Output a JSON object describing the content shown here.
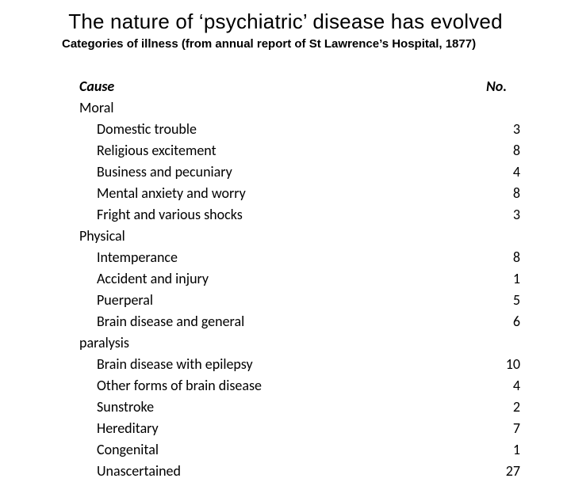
{
  "title": "The nature of ‘psychiatric’ disease has evolved",
  "subtitle": "Categories of illness (from annual report of St Lawrence’s Hospital, 1877)",
  "header": {
    "cause": "Cause",
    "no": "No."
  },
  "rows": [
    {
      "label": "Moral",
      "value": "",
      "cls": "section"
    },
    {
      "label": "Domestic trouble",
      "value": "3",
      "cls": "item"
    },
    {
      "label": "Religious excitement",
      "value": "8",
      "cls": "item"
    },
    {
      "label": "Business and pecuniary",
      "value": "4",
      "cls": "item"
    },
    {
      "label": "Mental anxiety and worry",
      "value": "8",
      "cls": "item"
    },
    {
      "label": "Fright and various shocks",
      "value": "3",
      "cls": "item"
    },
    {
      "label": "Physical",
      "value": "",
      "cls": "section"
    },
    {
      "label": "Intemperance",
      "value": "8",
      "cls": "item"
    },
    {
      "label": "Accident and injury",
      "value": "1",
      "cls": "item"
    },
    {
      "label": "Puerperal",
      "value": "5",
      "cls": "item"
    },
    {
      "label": "Brain disease and general",
      "value": "6",
      "cls": "item"
    },
    {
      "label": "paralysis",
      "value": "",
      "cls": "wrap-item"
    },
    {
      "label": "Brain disease with epilepsy",
      "value": "10",
      "cls": "item"
    },
    {
      "label": "Other forms of brain disease",
      "value": "4",
      "cls": "item"
    },
    {
      "label": "Sunstroke",
      "value": "2",
      "cls": "item"
    },
    {
      "label": "Hereditary",
      "value": "7",
      "cls": "item"
    },
    {
      "label": "Congenital",
      "value": "1",
      "cls": "item"
    },
    {
      "label": "Unascertained",
      "value": "27",
      "cls": "item"
    }
  ],
  "colors": {
    "background": "#ffffff",
    "text": "#000000"
  },
  "fontsize": {
    "title": 26,
    "subtitle": 15,
    "body": 18
  }
}
